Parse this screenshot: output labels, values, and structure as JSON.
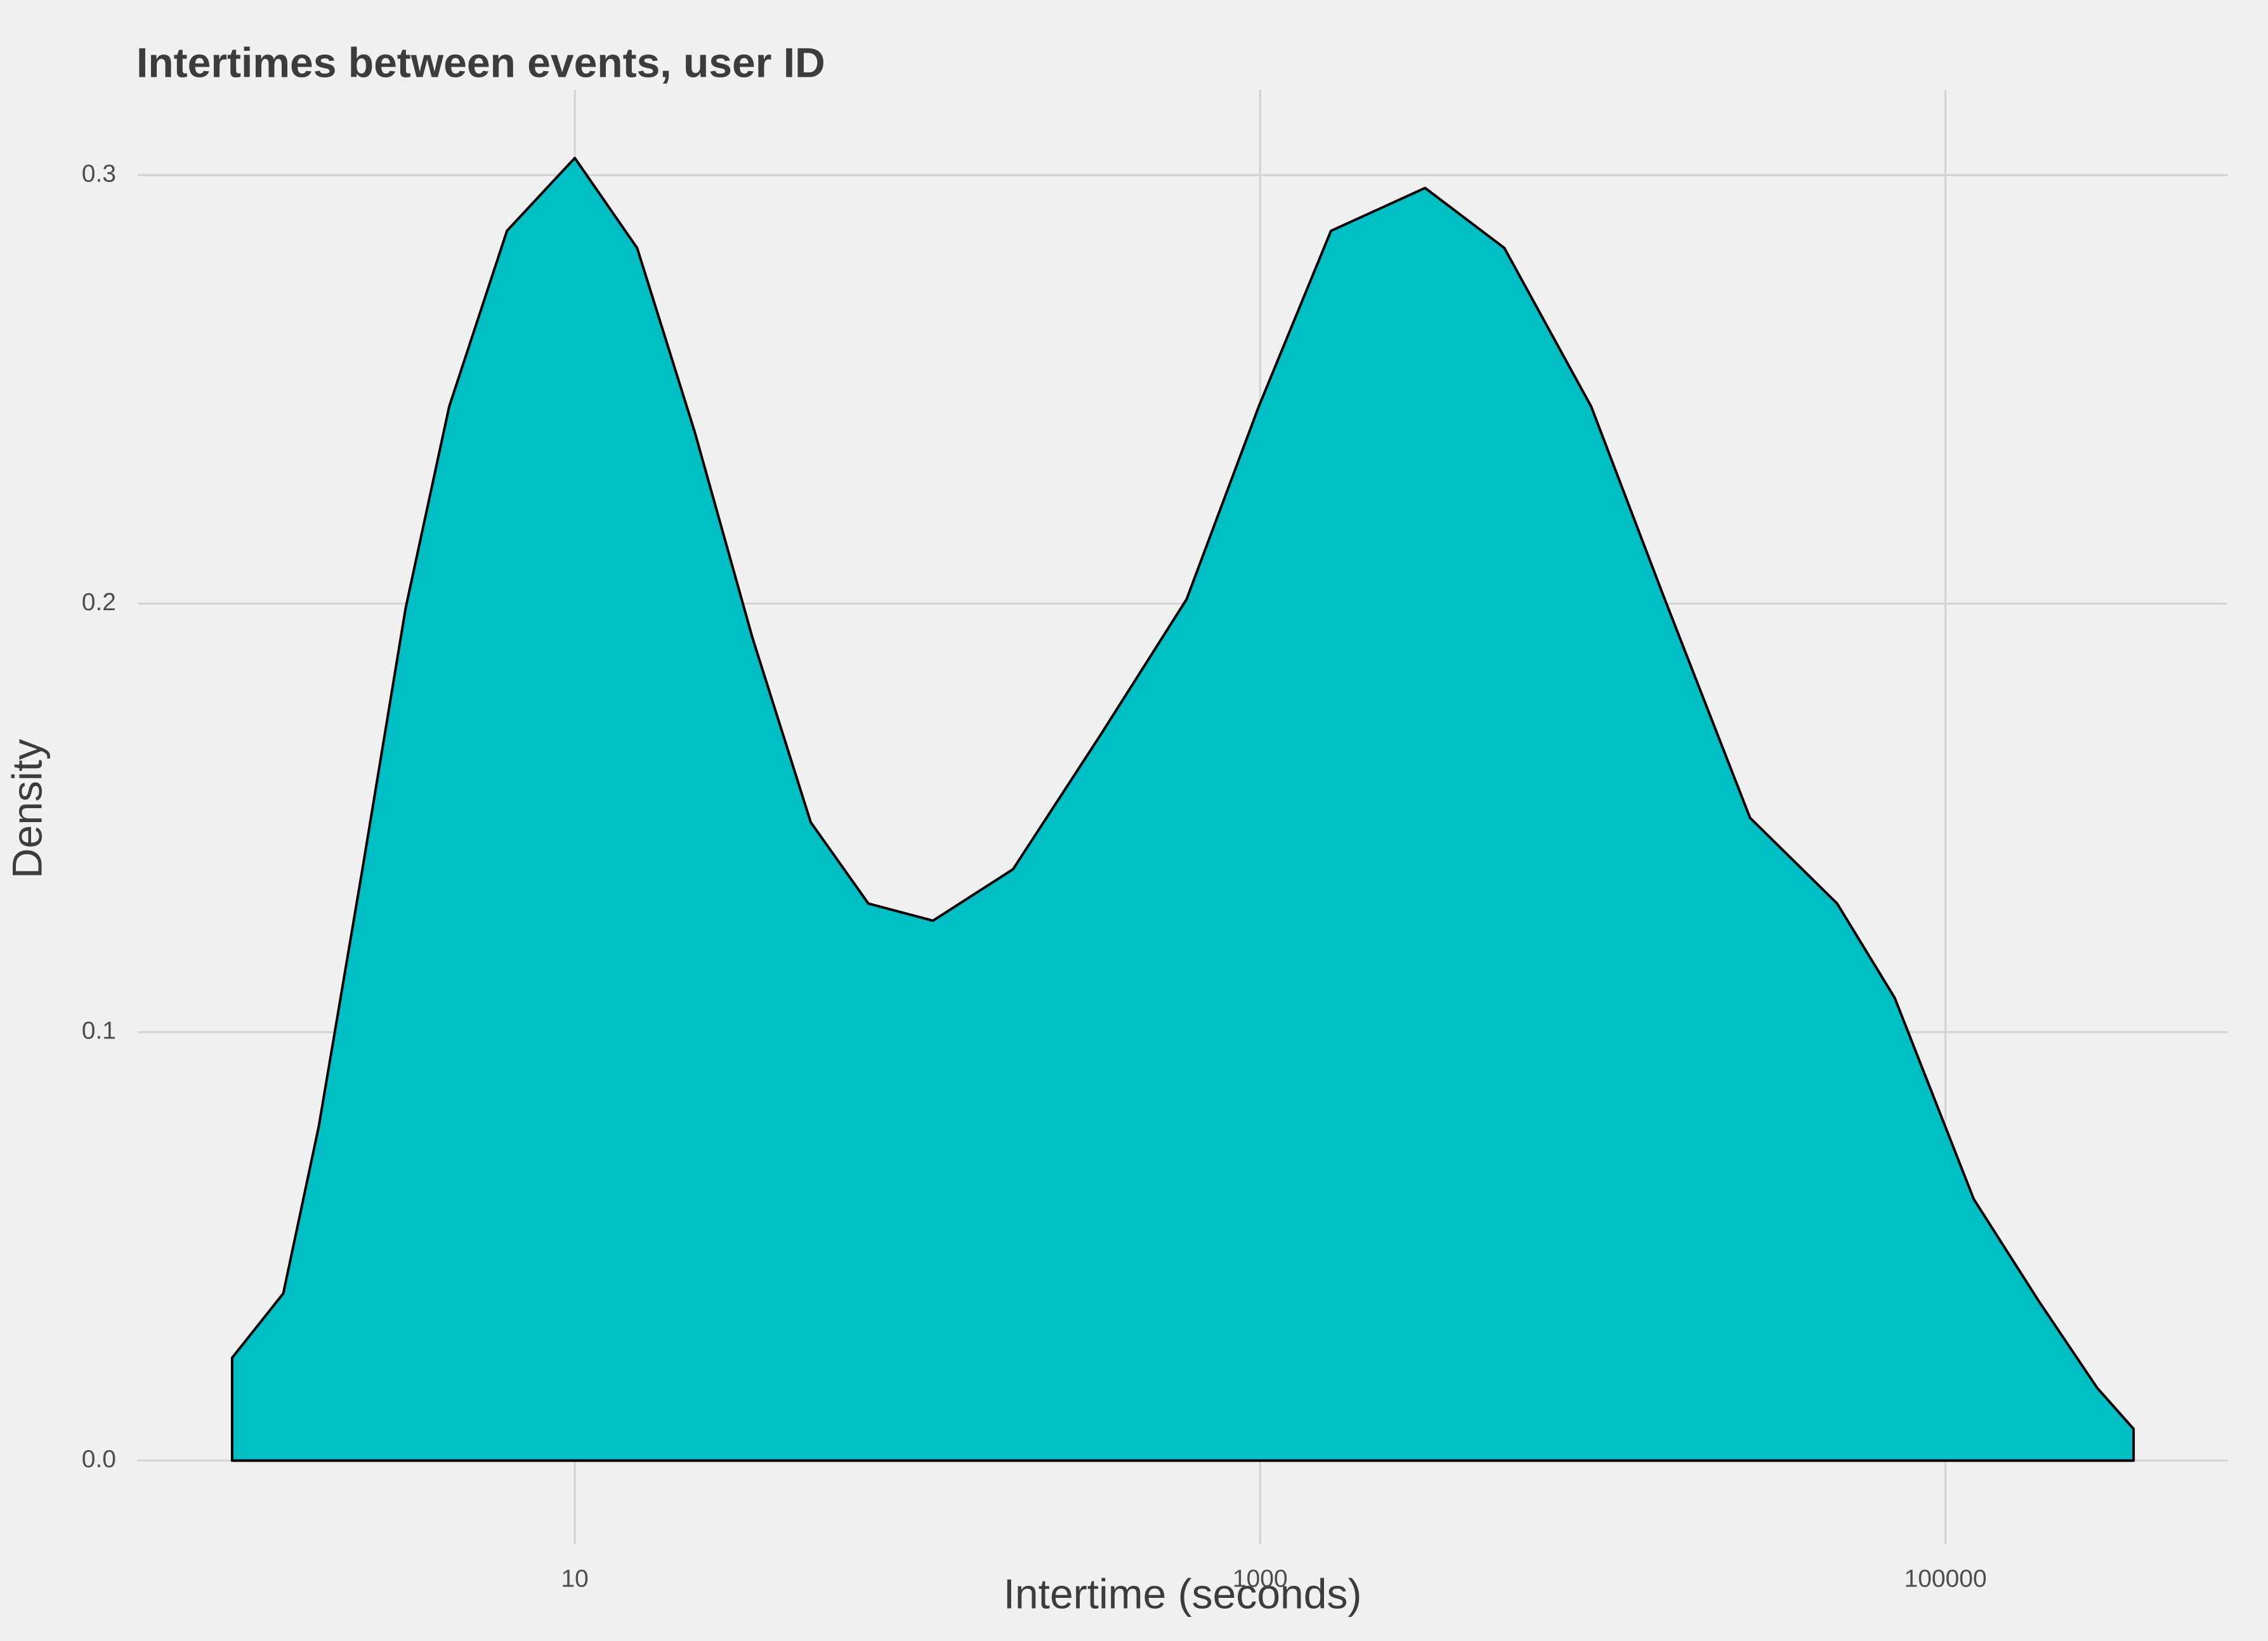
{
  "chart_data": {
    "type": "density",
    "title": "Intertimes between events, user ID",
    "x_label": "Intertime (seconds)",
    "y_label": "Density",
    "x": [
      1,
      1.41,
      1.79,
      2.4,
      3.21,
      4.3,
      6.34,
      10,
      15.2,
      22.4,
      33,
      48.8,
      71.9,
      111,
      190,
      340,
      610,
      991,
      1610,
      3030,
      5160,
      9250,
      15000,
      26900,
      48300,
      71100,
      121000,
      188000,
      277000,
      354000
    ],
    "values": [
      0.024,
      0.039,
      0.078,
      0.138,
      0.199,
      0.246,
      0.287,
      0.304,
      0.283,
      0.24,
      0.192,
      0.149,
      0.13,
      0.126,
      0.138,
      0.169,
      0.201,
      0.246,
      0.287,
      0.297,
      0.283,
      0.246,
      0.202,
      0.15,
      0.13,
      0.108,
      0.061,
      0.037,
      0.017,
      0.0074
    ],
    "color": "#00BFC4",
    "x_log": true,
    "xlim": [
      0.53,
      665000
    ],
    "xticks": [
      10,
      1000,
      100000
    ],
    "ylim": [
      -0.0196,
      0.32
    ],
    "yticks": [
      {
        "value": 0,
        "label": "0.0"
      },
      0.1,
      0.2,
      0.3
    ],
    "grid": true
  }
}
